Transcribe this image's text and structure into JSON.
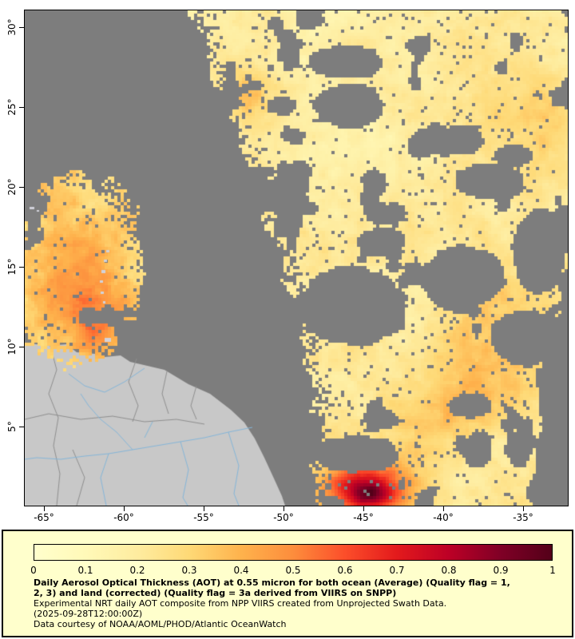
{
  "colors": {
    "ocean_nodata": "#7d7d7d",
    "land": "#c8c8c8",
    "land_border": "#8f8f8f",
    "river": "#85b6d9",
    "island": "#d2d2da",
    "legend_bg": "#ffffcc",
    "plot_border": "#000000"
  },
  "map": {
    "lat_tick_labels": [
      "30°",
      "25°",
      "20°",
      "15°",
      "10°",
      "5°"
    ],
    "lon_tick_labels": [
      "-65°",
      "-60°",
      "-55°",
      "-50°",
      "-45°",
      "-40°",
      "-35°"
    ]
  },
  "colorbar": {
    "min": 0,
    "max": 1,
    "tick_labels": [
      "0",
      "0.1",
      "0.2",
      "0.3",
      "0.4",
      "0.5",
      "0.6",
      "0.7",
      "0.8",
      "0.9",
      "1"
    ],
    "stops": [
      "#ffffcc",
      "#fff9b8",
      "#feec9f",
      "#fed976",
      "#feb24c",
      "#fd8d3c",
      "#fc4e2a",
      "#e31a1c",
      "#bd0026",
      "#800026",
      "#540019"
    ]
  },
  "caption": {
    "title_line1": "Daily Aerosol Optical Thickness (AOT) at 0.55 micron for both ocean (Average) (Quality flag = 1,",
    "title_line2": "2, 3) and land (corrected) (Quality flag = 3a derived from VIIRS on SNPP)",
    "subtitle": "Experimental NRT daily AOT composite from NPP VIIRS created from Unprojected Swath Data.",
    "timestamp": "(2025-09-28T12:00:00Z)",
    "credit": "Data courtesy of NOAA/AOML/PHOD/Atlantic OceanWatch"
  },
  "chart_data": {
    "type": "heatmap",
    "title": "Daily Aerosol Optical Thickness (AOT) at 0.55 micron",
    "variable": "Aerosol Optical Thickness (AOT)",
    "source": "NPP VIIRS unprojected swath composite",
    "date_shown": "2025-09-28T12:00:00Z",
    "colorbar_range": [
      0,
      1
    ],
    "colorbar_ticks": [
      0,
      0.1,
      0.2,
      0.3,
      0.4,
      0.5,
      0.6,
      0.7,
      0.8,
      0.9,
      1
    ],
    "lat_ticks_deg_north": [
      30,
      25,
      20,
      15,
      10,
      5
    ],
    "lon_ticks_deg_east": [
      -65,
      -60,
      -55,
      -50,
      -45,
      -40,
      -35
    ],
    "lat_range_deg_north": [
      0,
      31
    ],
    "lon_range_deg_east": [
      -66.25,
      -32.2
    ],
    "legend_position": "bottom",
    "notes": "Gray = no data / clouds; light gray = land (South America); yellow-to-red raster = AOT values mostly 0.1-0.4 with a 0.5-0.8 plume near 2N 45W"
  }
}
